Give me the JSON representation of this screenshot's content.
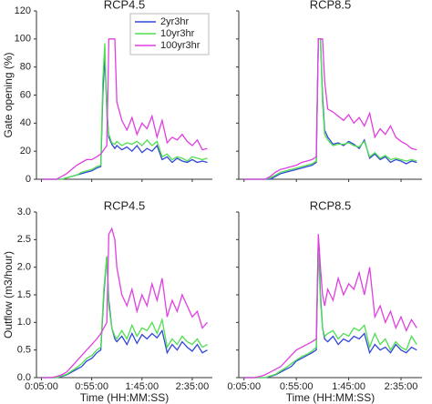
{
  "chart_data": [
    {
      "type": "line",
      "title": "RCP4.5",
      "y_label": "Gate opening (%)",
      "legend": "upper right",
      "x": [
        5,
        10,
        15,
        20,
        25,
        30,
        35,
        40,
        45,
        50,
        55,
        60,
        64,
        66,
        68,
        70,
        72,
        75,
        78,
        80,
        85,
        90,
        95,
        100,
        105,
        110,
        115,
        120,
        125,
        130,
        135,
        140,
        145,
        150,
        155,
        160,
        165,
        170
      ],
      "xlim": [
        0,
        175
      ],
      "xticks": [
        5,
        55,
        105,
        155
      ],
      "ylim": [
        0,
        120
      ],
      "yticks": [
        0,
        20,
        40,
        60,
        80,
        100,
        120
      ],
      "series": [
        {
          "name": "2yr3hr",
          "color": "#3046d8",
          "values": [
            0,
            0,
            0,
            0,
            0,
            1,
            2,
            3,
            4,
            5,
            6,
            8,
            9,
            60,
            88,
            50,
            30,
            25,
            22,
            24,
            21,
            23,
            20,
            24,
            19,
            22,
            20,
            24,
            14,
            16,
            12,
            15,
            13,
            12,
            14,
            12,
            13,
            12
          ]
        },
        {
          "name": "10yr3hr",
          "color": "#4fdf4f",
          "values": [
            0,
            0,
            0,
            0,
            0,
            1,
            2,
            3,
            5,
            6,
            7,
            9,
            10,
            70,
            97,
            45,
            32,
            26,
            25,
            27,
            24,
            26,
            25,
            27,
            24,
            28,
            24,
            27,
            16,
            18,
            14,
            16,
            15,
            13,
            16,
            15,
            14,
            15
          ]
        },
        {
          "name": "100yr3hr",
          "color": "#e03fe0",
          "values": [
            0,
            0,
            0,
            0,
            2,
            4,
            7,
            10,
            12,
            14,
            14,
            16,
            18,
            20,
            22,
            24,
            100,
            100,
            100,
            55,
            42,
            35,
            44,
            32,
            40,
            36,
            45,
            30,
            42,
            26,
            30,
            28,
            32,
            27,
            24,
            28,
            21,
            22
          ]
        }
      ]
    },
    {
      "type": "line",
      "title": "RCP8.5",
      "x": [
        5,
        10,
        15,
        20,
        25,
        30,
        35,
        40,
        45,
        50,
        55,
        60,
        65,
        70,
        74,
        76,
        78,
        80,
        82,
        85,
        90,
        95,
        100,
        105,
        110,
        115,
        120,
        125,
        130,
        135,
        140,
        145,
        150,
        155,
        160,
        165,
        170
      ],
      "xlim": [
        0,
        175
      ],
      "xticks": [
        5,
        55,
        105,
        155
      ],
      "ylim": [
        0,
        120
      ],
      "yticks": [
        0,
        20,
        40,
        60,
        80,
        100,
        120
      ],
      "series": [
        {
          "color": "#3046d8",
          "values": [
            0,
            0,
            0,
            0,
            0,
            0,
            2,
            4,
            5,
            6,
            7,
            8,
            9,
            10,
            12,
            100,
            100,
            60,
            35,
            30,
            25,
            26,
            24,
            27,
            25,
            22,
            28,
            15,
            18,
            14,
            16,
            12,
            14,
            13,
            11,
            13,
            12
          ]
        },
        {
          "color": "#4fdf4f",
          "values": [
            0,
            0,
            0,
            0,
            0,
            1,
            3,
            5,
            6,
            7,
            8,
            9,
            10,
            11,
            13,
            100,
            100,
            55,
            32,
            28,
            24,
            25,
            25,
            26,
            24,
            23,
            27,
            16,
            19,
            15,
            17,
            14,
            15,
            14,
            13,
            14,
            13
          ]
        },
        {
          "color": "#e03fe0",
          "values": [
            0,
            0,
            0,
            0,
            0,
            2,
            5,
            7,
            8,
            9,
            10,
            12,
            13,
            14,
            16,
            100,
            100,
            100,
            70,
            50,
            48,
            45,
            42,
            46,
            40,
            44,
            38,
            47,
            30,
            36,
            32,
            38,
            30,
            27,
            25,
            22,
            21
          ]
        }
      ]
    },
    {
      "type": "line",
      "title": "RCP4.5",
      "y_label": "Outflow (m3/hour)",
      "x_label": "Time (HH:MM:SS)",
      "x": [
        5,
        10,
        15,
        20,
        25,
        30,
        35,
        40,
        45,
        50,
        55,
        60,
        64,
        67,
        70,
        72,
        75,
        78,
        80,
        85,
        90,
        95,
        100,
        105,
        110,
        115,
        120,
        125,
        130,
        135,
        140,
        145,
        150,
        155,
        160,
        165,
        170
      ],
      "xlim": [
        0,
        175
      ],
      "xticks": [
        {
          "value": 5,
          "label": "0:05:00"
        },
        {
          "value": 55,
          "label": "0:55:00"
        },
        {
          "value": 105,
          "label": "1:45:00"
        },
        {
          "value": 155,
          "label": "2:35:00"
        }
      ],
      "ylim": [
        0,
        3
      ],
      "yticks": [
        {
          "value": 0,
          "label": "0.0"
        },
        0.5,
        {
          "value": 1,
          "label": "1.0"
        },
        1.5,
        {
          "value": 2,
          "label": "2.0"
        },
        2.5,
        {
          "value": 3,
          "label": "3.0"
        }
      ],
      "series": [
        {
          "color": "#3046d8",
          "values": [
            0,
            0,
            0,
            0,
            0.02,
            0.05,
            0.1,
            0.15,
            0.2,
            0.3,
            0.35,
            0.45,
            0.5,
            1.5,
            2.2,
            1.4,
            0.9,
            0.7,
            0.65,
            0.75,
            0.6,
            0.8,
            0.62,
            0.78,
            0.7,
            0.8,
            0.72,
            0.85,
            0.45,
            0.6,
            0.5,
            0.65,
            0.55,
            0.48,
            0.6,
            0.45,
            0.5
          ]
        },
        {
          "color": "#4fdf4f",
          "values": [
            0,
            0,
            0,
            0,
            0.03,
            0.06,
            0.12,
            0.18,
            0.25,
            0.35,
            0.4,
            0.5,
            0.55,
            1.6,
            2.2,
            1.3,
            0.9,
            0.75,
            0.7,
            0.85,
            0.7,
            0.95,
            0.75,
            0.9,
            0.85,
            1.0,
            0.8,
            1.05,
            0.55,
            0.7,
            0.6,
            0.75,
            0.65,
            0.6,
            0.7,
            0.55,
            0.6
          ]
        },
        {
          "color": "#e03fe0",
          "values": [
            0,
            0,
            0,
            0.02,
            0.05,
            0.1,
            0.2,
            0.3,
            0.4,
            0.5,
            0.6,
            0.7,
            0.8,
            0.9,
            1.0,
            2.6,
            2.7,
            2.5,
            2.0,
            1.5,
            1.3,
            1.6,
            1.2,
            1.5,
            1.3,
            1.7,
            1.4,
            1.8,
            1.1,
            1.4,
            1.2,
            1.5,
            1.3,
            1.1,
            1.2,
            0.9,
            1.0
          ]
        }
      ]
    },
    {
      "type": "line",
      "title": "RCP8.5",
      "x_label": "Time (HH:MM:SS)",
      "x": [
        5,
        10,
        15,
        20,
        25,
        30,
        35,
        40,
        45,
        50,
        55,
        60,
        65,
        70,
        74,
        76,
        78,
        80,
        82,
        85,
        90,
        95,
        100,
        105,
        110,
        115,
        120,
        125,
        130,
        135,
        140,
        145,
        150,
        155,
        160,
        165,
        170
      ],
      "xlim": [
        0,
        175
      ],
      "xticks": [
        {
          "value": 5,
          "label": "0:05:00"
        },
        {
          "value": 55,
          "label": "0:55:00"
        },
        {
          "value": 105,
          "label": "1:45:00"
        },
        {
          "value": 155,
          "label": "2:35:00"
        }
      ],
      "ylim": [
        0,
        3
      ],
      "yticks": [
        0,
        0.5,
        1,
        1.5,
        2,
        2.5,
        3
      ],
      "series": [
        {
          "color": "#3046d8",
          "values": [
            0,
            0,
            0,
            0,
            0,
            0.02,
            0.05,
            0.1,
            0.15,
            0.2,
            0.3,
            0.35,
            0.4,
            0.45,
            0.5,
            2.5,
            1.5,
            0.9,
            0.7,
            0.65,
            0.75,
            0.6,
            0.7,
            0.65,
            0.75,
            0.7,
            0.8,
            0.45,
            0.6,
            0.5,
            0.55,
            0.45,
            0.6,
            0.5,
            0.45,
            0.55,
            0.5
          ]
        },
        {
          "color": "#4fdf4f",
          "values": [
            0,
            0,
            0,
            0,
            0,
            0.03,
            0.06,
            0.12,
            0.18,
            0.25,
            0.32,
            0.38,
            0.42,
            0.48,
            0.55,
            2.3,
            1.4,
            0.9,
            0.75,
            0.8,
            0.85,
            0.7,
            0.8,
            0.75,
            0.9,
            0.85,
            0.95,
            0.55,
            0.8,
            0.6,
            0.7,
            0.5,
            0.65,
            0.55,
            0.5,
            0.75,
            0.6
          ]
        },
        {
          "color": "#e03fe0",
          "values": [
            0,
            0,
            0,
            0.02,
            0.05,
            0.1,
            0.15,
            0.2,
            0.3,
            0.4,
            0.5,
            0.55,
            0.6,
            0.65,
            0.7,
            2.6,
            2.0,
            1.5,
            1.3,
            1.6,
            1.4,
            1.8,
            1.5,
            1.7,
            1.6,
            1.9,
            1.5,
            2.0,
            1.1,
            1.3,
            1.0,
            1.2,
            0.9,
            1.1,
            0.85,
            1.05,
            0.9
          ]
        }
      ]
    }
  ]
}
